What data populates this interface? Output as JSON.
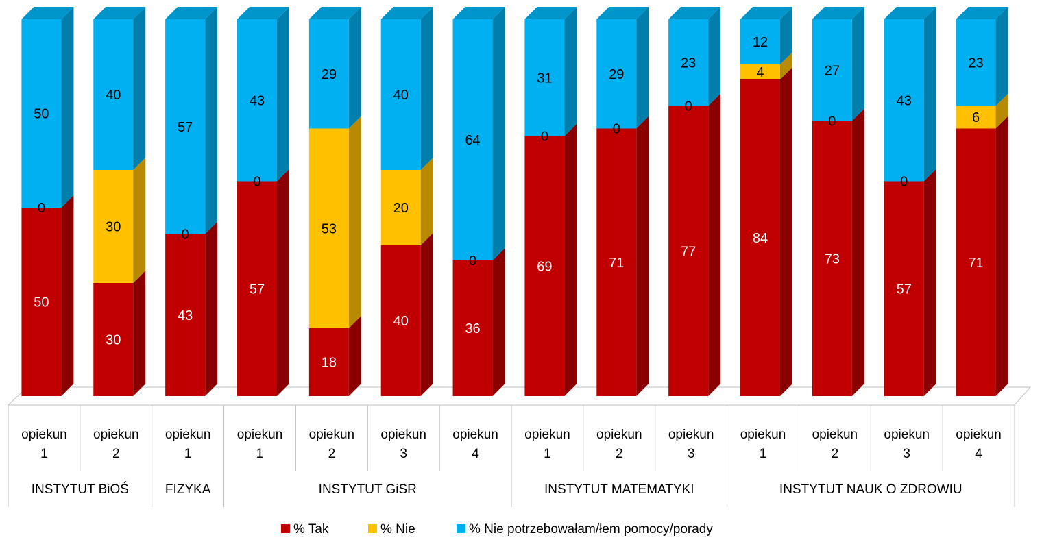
{
  "chart_data": {
    "type": "bar",
    "stacked": true,
    "three_d": true,
    "ylim": [
      0,
      100
    ],
    "grid": false,
    "legend_position": "bottom",
    "categories": [
      "opiekun 1",
      "opiekun 2",
      "opiekun 1",
      "opiekun 1",
      "opiekun 2",
      "opiekun 3",
      "opiekun 4",
      "opiekun 1",
      "opiekun 2",
      "opiekun 3",
      "opiekun 1",
      "opiekun 2",
      "opiekun 3",
      "opiekun 4"
    ],
    "category_lines": [
      [
        "opiekun",
        "1"
      ],
      [
        "opiekun",
        "2"
      ],
      [
        "opiekun",
        "1"
      ],
      [
        "opiekun",
        "1"
      ],
      [
        "opiekun",
        "2"
      ],
      [
        "opiekun",
        "3"
      ],
      [
        "opiekun",
        "4"
      ],
      [
        "opiekun",
        "1"
      ],
      [
        "opiekun",
        "2"
      ],
      [
        "opiekun",
        "3"
      ],
      [
        "opiekun",
        "1"
      ],
      [
        "opiekun",
        "2"
      ],
      [
        "opiekun",
        "3"
      ],
      [
        "opiekun",
        "4"
      ]
    ],
    "groups": [
      {
        "label": "INSTYTUT  BiOŚ",
        "count": 2
      },
      {
        "label": "FIZYKA",
        "count": 1
      },
      {
        "label": "INSTYTUT  GiSR",
        "count": 4
      },
      {
        "label": "INSTYTUT  MATEMATYKI",
        "count": 3
      },
      {
        "label": "INSTYTUT  NAUK O ZDROWIU",
        "count": 4
      }
    ],
    "series": [
      {
        "name": "% Tak",
        "color": "#c00000",
        "values": [
          50,
          30,
          43,
          57,
          18,
          40,
          36,
          69,
          71,
          77,
          84,
          73,
          57,
          71
        ]
      },
      {
        "name": "% Nie",
        "color": "#ffc000",
        "values": [
          0,
          30,
          0,
          0,
          53,
          20,
          0,
          0,
          0,
          0,
          4,
          0,
          0,
          6
        ]
      },
      {
        "name": "% Nie potrzebowałam/łem  pomocy/porady",
        "color": "#00b0f0",
        "values": [
          50,
          40,
          57,
          43,
          29,
          40,
          64,
          31,
          29,
          23,
          12,
          27,
          43,
          23
        ]
      }
    ]
  }
}
